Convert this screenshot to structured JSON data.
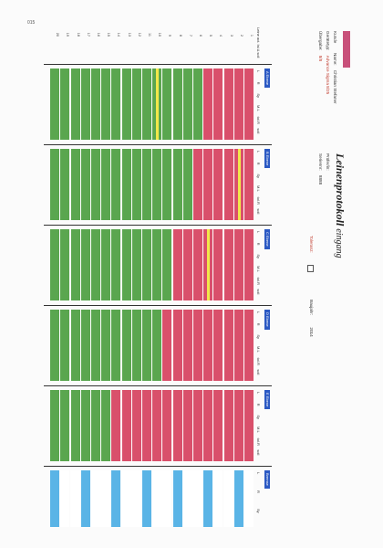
{
  "scan_mark": "015",
  "title": "Leinenprotokoll",
  "title_suffix": "eingang",
  "fields": {
    "kunde_label": "Kunde",
    "name_label": "Name:",
    "name_value": "Christian Stefaner",
    "geraet_label": "Gerätetyp:",
    "geraet_value": "Advance Sigma 8/25",
    "uebergabe_label": "Übergabe:",
    "uebergabe_value": "8/8",
    "pruefer_label": "Prüfer/in:",
    "seriennr_label": "Seriennr:",
    "seriennr_value": "8888",
    "toleranz_label": "Toleranz:",
    "baujahr_label": "Baujahr:",
    "baujahr_value": "2014"
  },
  "side_column": {
    "header": "Leine act.",
    "header2": "Ist",
    "header3": "Δ",
    "header4": "soll",
    "rows": [
      "1",
      "2",
      "3",
      "4",
      "5",
      "6",
      "7",
      "8",
      "9",
      "10",
      "11",
      "12",
      "13",
      "14",
      "15",
      "16",
      "17",
      "18",
      "19",
      "20"
    ]
  },
  "blocks": [
    {
      "label": "A Ebene",
      "cols": [
        "L",
        "R",
        "Sy",
        "M.L",
        "tol.R",
        "soll"
      ]
    },
    {
      "label": "B Ebene",
      "cols": [
        "L",
        "R",
        "Sy",
        "M.L",
        "tol.R",
        "soll"
      ]
    },
    {
      "label": "C Ebene",
      "cols": [
        "L",
        "R",
        "Sy",
        "M.L",
        "tol.R",
        "soll"
      ]
    },
    {
      "label": "D Ebene",
      "cols": [
        "L",
        "R",
        "Sy",
        "M.L",
        "tol.R",
        "soll"
      ]
    },
    {
      "label": "E Ebene",
      "cols": [
        "L",
        "R",
        "Sy",
        "M.L",
        "tol.R",
        "soll"
      ]
    },
    {
      "label": "Bremse",
      "cols": [
        "L",
        "R",
        "Sy"
      ]
    }
  ],
  "colors": {
    "pink": "#d9506b",
    "green": "#5aa64f",
    "yellow": "#f1e84a",
    "blue": "#5ab4e6",
    "header_blue": "#2b59c3"
  }
}
